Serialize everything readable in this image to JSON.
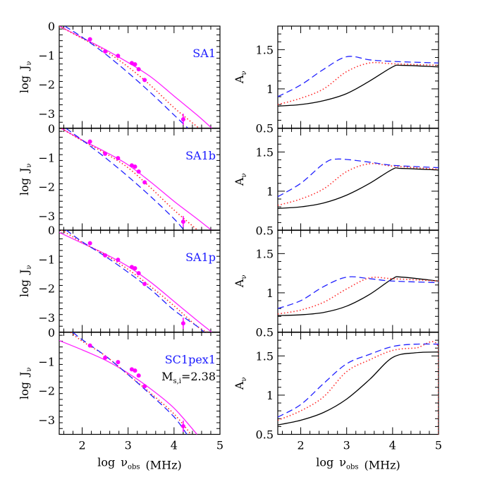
{
  "colors": {
    "solid_left": "#ff22ff",
    "points": "#ff00ff",
    "dotted": "#ff2a2a",
    "dashed": "#2222ff",
    "solid_right": "#000000",
    "panel_label": "#1a1aff"
  },
  "chart_data": [
    {
      "type": "line",
      "column": "left",
      "panel_label": "SA1",
      "ylabel": "log J_ν",
      "xlim": [
        1.5,
        5
      ],
      "ylim": [
        -3.5,
        0
      ],
      "xticks": [
        "2",
        "3",
        "4",
        "5"
      ],
      "yticks": [
        "0",
        "-1",
        "-2",
        "-3"
      ],
      "points": [
        [
          2.17,
          -0.45
        ],
        [
          2.5,
          -0.87
        ],
        [
          2.78,
          -1.02
        ],
        [
          3.08,
          -1.27
        ],
        [
          3.15,
          -1.31
        ],
        [
          3.23,
          -1.48
        ],
        [
          3.36,
          -1.85
        ],
        [
          4.2,
          -3.2
        ]
      ],
      "series": [
        {
          "style": "solid",
          "points": [
            [
              1.5,
              0
            ],
            [
              2,
              -0.4
            ],
            [
              2.5,
              -0.8
            ],
            [
              3,
              -1.25
            ],
            [
              3.5,
              -1.75
            ],
            [
              4,
              -2.4
            ],
            [
              4.5,
              -3.05
            ],
            [
              4.82,
              -3.5
            ]
          ]
        },
        {
          "style": "dotted",
          "points": [
            [
              1.5,
              0
            ],
            [
              2,
              -0.42
            ],
            [
              2.5,
              -0.85
            ],
            [
              3,
              -1.4
            ],
            [
              3.5,
              -2.05
            ],
            [
              4,
              -2.8
            ],
            [
              4.54,
              -3.5
            ]
          ]
        },
        {
          "style": "dashed",
          "points": [
            [
              1.62,
              0
            ],
            [
              2,
              -0.38
            ],
            [
              2.5,
              -0.95
            ],
            [
              3,
              -1.6
            ],
            [
              3.5,
              -2.3
            ],
            [
              4,
              -3.05
            ],
            [
              4.3,
              -3.5
            ]
          ]
        }
      ]
    },
    {
      "type": "line",
      "column": "left",
      "panel_label": "SA1b",
      "ylabel": "log J_ν",
      "xlim": [
        1.5,
        5
      ],
      "ylim": [
        -3.5,
        0
      ],
      "xticks": [
        "2",
        "3",
        "4",
        "5"
      ],
      "yticks": [
        "0",
        "-1",
        "-2",
        "-3"
      ],
      "points": [
        [
          2.17,
          -0.45
        ],
        [
          2.5,
          -0.87
        ],
        [
          2.78,
          -1.02
        ],
        [
          3.08,
          -1.27
        ],
        [
          3.15,
          -1.31
        ],
        [
          3.23,
          -1.48
        ],
        [
          3.36,
          -1.85
        ],
        [
          4.2,
          -3.2
        ]
      ],
      "series": [
        {
          "style": "solid",
          "points": [
            [
              1.55,
              0
            ],
            [
              2,
              -0.4
            ],
            [
              2.5,
              -0.8
            ],
            [
              3,
              -1.25
            ],
            [
              3.5,
              -1.85
            ],
            [
              4,
              -2.5
            ],
            [
              4.5,
              -3.1
            ],
            [
              4.82,
              -3.5
            ]
          ]
        },
        {
          "style": "dotted",
          "points": [
            [
              1.55,
              0
            ],
            [
              2,
              -0.42
            ],
            [
              2.5,
              -0.85
            ],
            [
              3,
              -1.35
            ],
            [
              3.5,
              -2.05
            ],
            [
              4,
              -2.8
            ],
            [
              4.52,
              -3.5
            ]
          ]
        },
        {
          "style": "dashed",
          "points": [
            [
              1.65,
              0
            ],
            [
              2,
              -0.4
            ],
            [
              2.5,
              -1.0
            ],
            [
              3,
              -1.65
            ],
            [
              3.5,
              -2.35
            ],
            [
              4,
              -3.1
            ],
            [
              4.22,
              -3.5
            ]
          ]
        }
      ]
    },
    {
      "type": "line",
      "column": "left",
      "panel_label": "SA1p",
      "ylabel": "log J_ν",
      "xlim": [
        1.5,
        5
      ],
      "ylim": [
        -3.5,
        0
      ],
      "xticks": [
        "2",
        "3",
        "4",
        "5"
      ],
      "yticks": [
        "0",
        "-1",
        "-2",
        "-3"
      ],
      "points": [
        [
          2.17,
          -0.45
        ],
        [
          2.5,
          -0.87
        ],
        [
          2.78,
          -1.02
        ],
        [
          3.08,
          -1.27
        ],
        [
          3.15,
          -1.31
        ],
        [
          3.23,
          -1.48
        ],
        [
          3.36,
          -1.85
        ],
        [
          4.2,
          -3.2
        ]
      ],
      "series": [
        {
          "style": "solid",
          "points": [
            [
              1.5,
              -0.08
            ],
            [
              2,
              -0.45
            ],
            [
              2.5,
              -0.82
            ],
            [
              3,
              -1.25
            ],
            [
              3.5,
              -1.8
            ],
            [
              4,
              -2.45
            ],
            [
              4.5,
              -3.1
            ],
            [
              4.82,
              -3.5
            ]
          ]
        },
        {
          "style": "dotted",
          "points": [
            [
              1.55,
              0
            ],
            [
              2,
              -0.42
            ],
            [
              2.5,
              -0.85
            ],
            [
              3,
              -1.35
            ],
            [
              3.5,
              -1.95
            ],
            [
              4,
              -2.6
            ],
            [
              4.5,
              -3.3
            ],
            [
              4.72,
              -3.5
            ]
          ]
        },
        {
          "style": "dashed",
          "points": [
            [
              1.65,
              0
            ],
            [
              2,
              -0.4
            ],
            [
              2.5,
              -0.9
            ],
            [
              3,
              -1.45
            ],
            [
              3.5,
              -2.05
            ],
            [
              4,
              -2.75
            ],
            [
              4.5,
              -3.3
            ],
            [
              4.65,
              -3.5
            ]
          ]
        }
      ]
    },
    {
      "type": "line",
      "column": "left",
      "panel_label": "SC1pex1",
      "annotation": "M_s,i=2.38",
      "ylabel": "log J_ν",
      "xlabel": "log ν_obs (MHz)",
      "xlim": [
        1.5,
        5
      ],
      "ylim": [
        -3.5,
        0
      ],
      "xticks": [
        "2",
        "3",
        "4",
        "5"
      ],
      "yticks": [
        "0",
        "-1",
        "-2",
        "-3"
      ],
      "points": [
        [
          2.17,
          -0.45
        ],
        [
          2.5,
          -0.87
        ],
        [
          2.78,
          -1.02
        ],
        [
          3.08,
          -1.27
        ],
        [
          3.15,
          -1.31
        ],
        [
          3.23,
          -1.48
        ],
        [
          3.36,
          -1.85
        ],
        [
          4.2,
          -3.22
        ]
      ],
      "series": [
        {
          "style": "solid",
          "points": [
            [
              1.5,
              -0.28
            ],
            [
              2,
              -0.6
            ],
            [
              2.5,
              -0.95
            ],
            [
              3,
              -1.4
            ],
            [
              3.5,
              -1.95
            ],
            [
              4,
              -2.6
            ],
            [
              4.5,
              -3.5
            ]
          ]
        },
        {
          "style": "dotted",
          "points": [
            [
              1.75,
              0
            ],
            [
              2,
              -0.3
            ],
            [
              2.5,
              -0.8
            ],
            [
              3,
              -1.45
            ],
            [
              3.5,
              -2.1
            ],
            [
              4,
              -2.8
            ],
            [
              4.37,
              -3.5
            ]
          ]
        },
        {
          "style": "dashed",
          "points": [
            [
              1.8,
              0
            ],
            [
              2,
              -0.25
            ],
            [
              2.5,
              -0.8
            ],
            [
              3,
              -1.45
            ],
            [
              3.5,
              -2.15
            ],
            [
              4,
              -2.9
            ],
            [
              4.28,
              -3.5
            ]
          ]
        }
      ]
    },
    {
      "type": "line",
      "column": "right",
      "ylabel": "A_ν",
      "xlim": [
        1.5,
        5
      ],
      "ylim": [
        0.5,
        1.8
      ],
      "xticks": [
        "2",
        "3",
        "4",
        "5"
      ],
      "yticks": [
        "0.5",
        "1",
        "1.5"
      ],
      "series": [
        {
          "style": "solid",
          "points": [
            [
              1.5,
              0.78
            ],
            [
              2,
              0.8
            ],
            [
              2.5,
              0.85
            ],
            [
              3,
              0.94
            ],
            [
              3.5,
              1.1
            ],
            [
              4,
              1.28
            ],
            [
              4.2,
              1.3
            ],
            [
              5,
              1.28
            ]
          ]
        },
        {
          "style": "dotted",
          "points": [
            [
              1.5,
              0.8
            ],
            [
              2,
              0.88
            ],
            [
              2.5,
              1.0
            ],
            [
              3,
              1.22
            ],
            [
              3.5,
              1.33
            ],
            [
              4,
              1.32
            ],
            [
              5,
              1.3
            ]
          ]
        },
        {
          "style": "dashed",
          "points": [
            [
              1.5,
              0.9
            ],
            [
              2,
              1.05
            ],
            [
              2.5,
              1.25
            ],
            [
              3,
              1.41
            ],
            [
              3.5,
              1.37
            ],
            [
              4,
              1.35
            ],
            [
              5,
              1.33
            ]
          ]
        }
      ]
    },
    {
      "type": "line",
      "column": "right",
      "ylabel": "A_ν",
      "xlim": [
        1.5,
        5
      ],
      "ylim": [
        0.5,
        1.8
      ],
      "xticks": [
        "2",
        "3",
        "4",
        "5"
      ],
      "yticks": [
        "0.5",
        "1",
        "1.5"
      ],
      "series": [
        {
          "style": "solid",
          "points": [
            [
              1.5,
              0.78
            ],
            [
              2,
              0.8
            ],
            [
              2.5,
              0.85
            ],
            [
              3,
              0.95
            ],
            [
              3.5,
              1.1
            ],
            [
              4,
              1.28
            ],
            [
              4.2,
              1.29
            ],
            [
              5,
              1.27
            ]
          ]
        },
        {
          "style": "dotted",
          "points": [
            [
              1.5,
              0.82
            ],
            [
              2,
              0.9
            ],
            [
              2.5,
              1.03
            ],
            [
              3,
              1.25
            ],
            [
              3.5,
              1.35
            ],
            [
              4,
              1.32
            ],
            [
              5,
              1.28
            ]
          ]
        },
        {
          "style": "dashed",
          "points": [
            [
              1.5,
              0.93
            ],
            [
              2,
              1.1
            ],
            [
              2.5,
              1.35
            ],
            [
              2.8,
              1.41
            ],
            [
              3.5,
              1.37
            ],
            [
              4,
              1.33
            ],
            [
              5,
              1.3
            ]
          ]
        }
      ]
    },
    {
      "type": "line",
      "column": "right",
      "ylabel": "A_ν",
      "xlim": [
        1.5,
        5
      ],
      "ylim": [
        0.5,
        1.8
      ],
      "xticks": [
        "2",
        "3",
        "4",
        "5"
      ],
      "yticks": [
        "0.5",
        "1",
        "1.5"
      ],
      "series": [
        {
          "style": "solid",
          "points": [
            [
              1.5,
              0.71
            ],
            [
              2,
              0.72
            ],
            [
              2.5,
              0.75
            ],
            [
              3,
              0.83
            ],
            [
              3.5,
              0.98
            ],
            [
              4,
              1.18
            ],
            [
              4.2,
              1.2
            ],
            [
              5,
              1.15
            ]
          ]
        },
        {
          "style": "dotted",
          "points": [
            [
              1.5,
              0.73
            ],
            [
              2,
              0.78
            ],
            [
              2.5,
              0.88
            ],
            [
              3,
              1.05
            ],
            [
              3.5,
              1.19
            ],
            [
              4,
              1.18
            ],
            [
              5,
              1.15
            ]
          ]
        },
        {
          "style": "dashed",
          "points": [
            [
              1.5,
              0.8
            ],
            [
              2,
              0.9
            ],
            [
              2.5,
              1.08
            ],
            [
              3,
              1.2
            ],
            [
              3.5,
              1.18
            ],
            [
              4,
              1.15
            ],
            [
              5,
              1.13
            ]
          ]
        }
      ]
    },
    {
      "type": "line",
      "column": "right",
      "ylabel": "A_ν",
      "xlabel": "log ν_obs (MHz)",
      "xlim": [
        1.5,
        5
      ],
      "ylim": [
        0.5,
        1.8
      ],
      "xticks": [
        "2",
        "3",
        "4",
        "5"
      ],
      "yticks": [
        "0.5",
        "1",
        "1.5"
      ],
      "series": [
        {
          "style": "solid",
          "points": [
            [
              1.5,
              0.62
            ],
            [
              2,
              0.68
            ],
            [
              2.5,
              0.78
            ],
            [
              3,
              0.95
            ],
            [
              3.5,
              1.2
            ],
            [
              4,
              1.48
            ],
            [
              4.5,
              1.54
            ],
            [
              5,
              1.55
            ]
          ]
        },
        {
          "style": "dotted",
          "points": [
            [
              1.5,
              0.68
            ],
            [
              2,
              0.8
            ],
            [
              2.5,
              0.98
            ],
            [
              3,
              1.3
            ],
            [
              3.5,
              1.45
            ],
            [
              4,
              1.57
            ],
            [
              4.5,
              1.6
            ],
            [
              5,
              1.6
            ],
            [
              5,
              0.5
            ]
          ]
        },
        {
          "style": "dashed",
          "points": [
            [
              1.5,
              0.72
            ],
            [
              2,
              0.88
            ],
            [
              2.5,
              1.15
            ],
            [
              3,
              1.4
            ],
            [
              3.5,
              1.52
            ],
            [
              4,
              1.62
            ],
            [
              4.5,
              1.65
            ],
            [
              5,
              1.65
            ]
          ]
        }
      ]
    }
  ]
}
